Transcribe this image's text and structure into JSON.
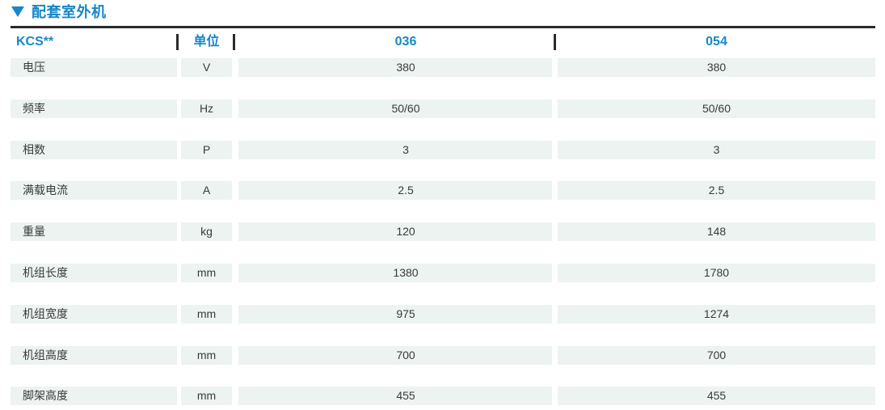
{
  "colors": {
    "accent": "#1787c9",
    "line": "#2b2b2b",
    "row_bg": "#ecf3f1",
    "text": "#3a3a3a"
  },
  "icons": {
    "section_marker": "triangle-down"
  },
  "section": {
    "title": "配套室外机"
  },
  "table": {
    "model_header": "KCS**",
    "unit_header": "单位",
    "column_headers": [
      "036",
      "054"
    ],
    "rows": [
      {
        "label": "电压",
        "unit": "V",
        "values": [
          "380",
          "380"
        ]
      },
      {
        "label": "频率",
        "unit": "Hz",
        "values": [
          "50/60",
          "50/60"
        ]
      },
      {
        "label": "相数",
        "unit": "P",
        "values": [
          "3",
          "3"
        ]
      },
      {
        "label": "满载电流",
        "unit": "A",
        "values": [
          "2.5",
          "2.5"
        ]
      },
      {
        "label": "重量",
        "unit": "kg",
        "values": [
          "120",
          "148"
        ]
      },
      {
        "label": "机组长度",
        "unit": "mm",
        "values": [
          "1380",
          "1780"
        ]
      },
      {
        "label": "机组宽度",
        "unit": "mm",
        "values": [
          "975",
          "1274"
        ]
      },
      {
        "label": "机组高度",
        "unit": "mm",
        "values": [
          "700",
          "700"
        ]
      },
      {
        "label": "脚架高度",
        "unit": "mm",
        "values": [
          "455",
          "455"
        ]
      }
    ]
  }
}
